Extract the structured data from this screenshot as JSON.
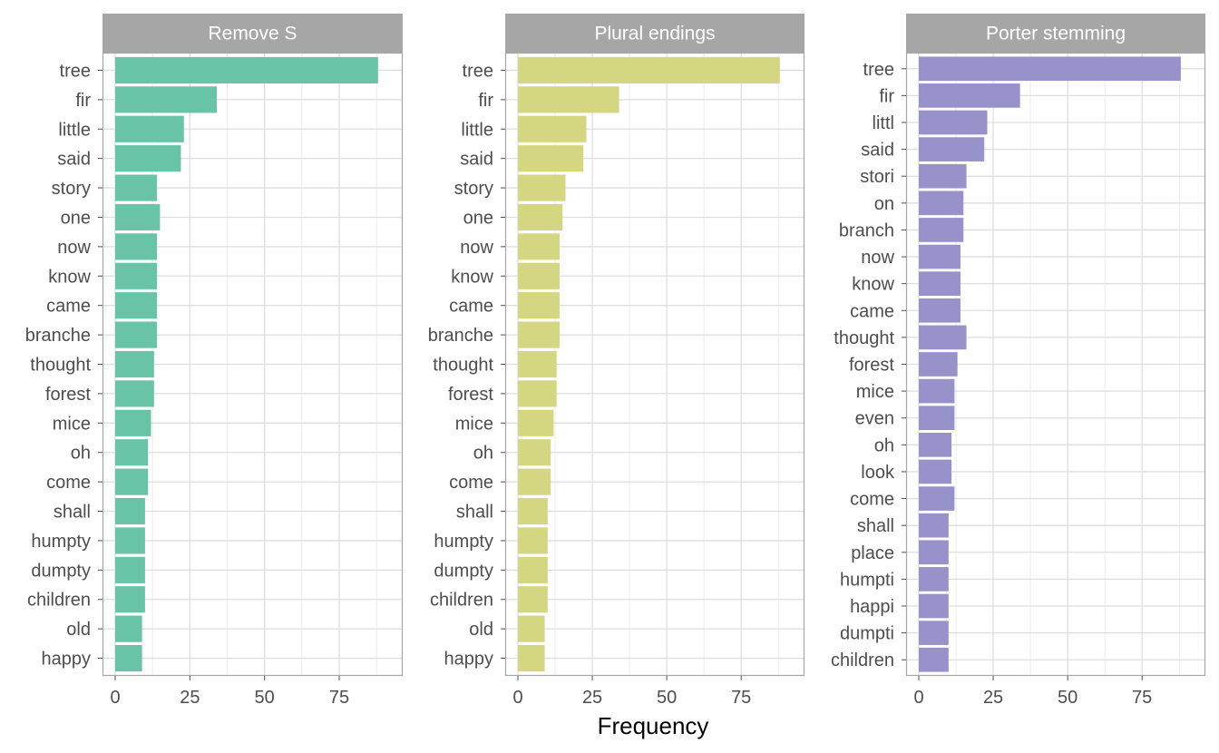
{
  "chart_data": {
    "type": "bar",
    "orientation": "horizontal",
    "xlabel": "Frequency",
    "ylabel": "",
    "xlim": [
      0,
      92
    ],
    "xticks": [
      0,
      25,
      50,
      75
    ],
    "grid": true,
    "panels": [
      {
        "title": "Remove S",
        "color": "#66c2a5",
        "categories": [
          "tree",
          "fir",
          "little",
          "said",
          "story",
          "one",
          "now",
          "know",
          "came",
          "branche",
          "thought",
          "forest",
          "mice",
          "oh",
          "come",
          "shall",
          "humpty",
          "dumpty",
          "children",
          "old",
          "happy"
        ],
        "values": [
          88,
          34,
          23,
          22,
          14,
          15,
          14,
          14,
          14,
          14,
          13,
          13,
          12,
          11,
          11,
          10,
          10,
          10,
          10,
          9,
          9
        ]
      },
      {
        "title": "Plural endings",
        "color": "#d4d57e",
        "categories": [
          "tree",
          "fir",
          "little",
          "said",
          "story",
          "one",
          "now",
          "know",
          "came",
          "branche",
          "thought",
          "forest",
          "mice",
          "oh",
          "come",
          "shall",
          "humpty",
          "dumpty",
          "children",
          "old",
          "happy"
        ],
        "values": [
          88,
          34,
          23,
          22,
          16,
          15,
          14,
          14,
          14,
          14,
          13,
          13,
          12,
          11,
          11,
          10,
          10,
          10,
          10,
          9,
          9
        ]
      },
      {
        "title": "Porter stemming",
        "color": "#9590c8",
        "categories": [
          "tree",
          "fir",
          "littl",
          "said",
          "stori",
          "on",
          "branch",
          "now",
          "know",
          "came",
          "thought",
          "forest",
          "mice",
          "even",
          "oh",
          "look",
          "come",
          "shall",
          "place",
          "humpti",
          "happi",
          "dumpti",
          "children"
        ],
        "values": [
          88,
          34,
          23,
          22,
          16,
          15,
          15,
          14,
          14,
          14,
          16,
          13,
          12,
          12,
          11,
          11,
          12,
          10,
          10,
          10,
          10,
          10,
          10
        ]
      }
    ]
  }
}
